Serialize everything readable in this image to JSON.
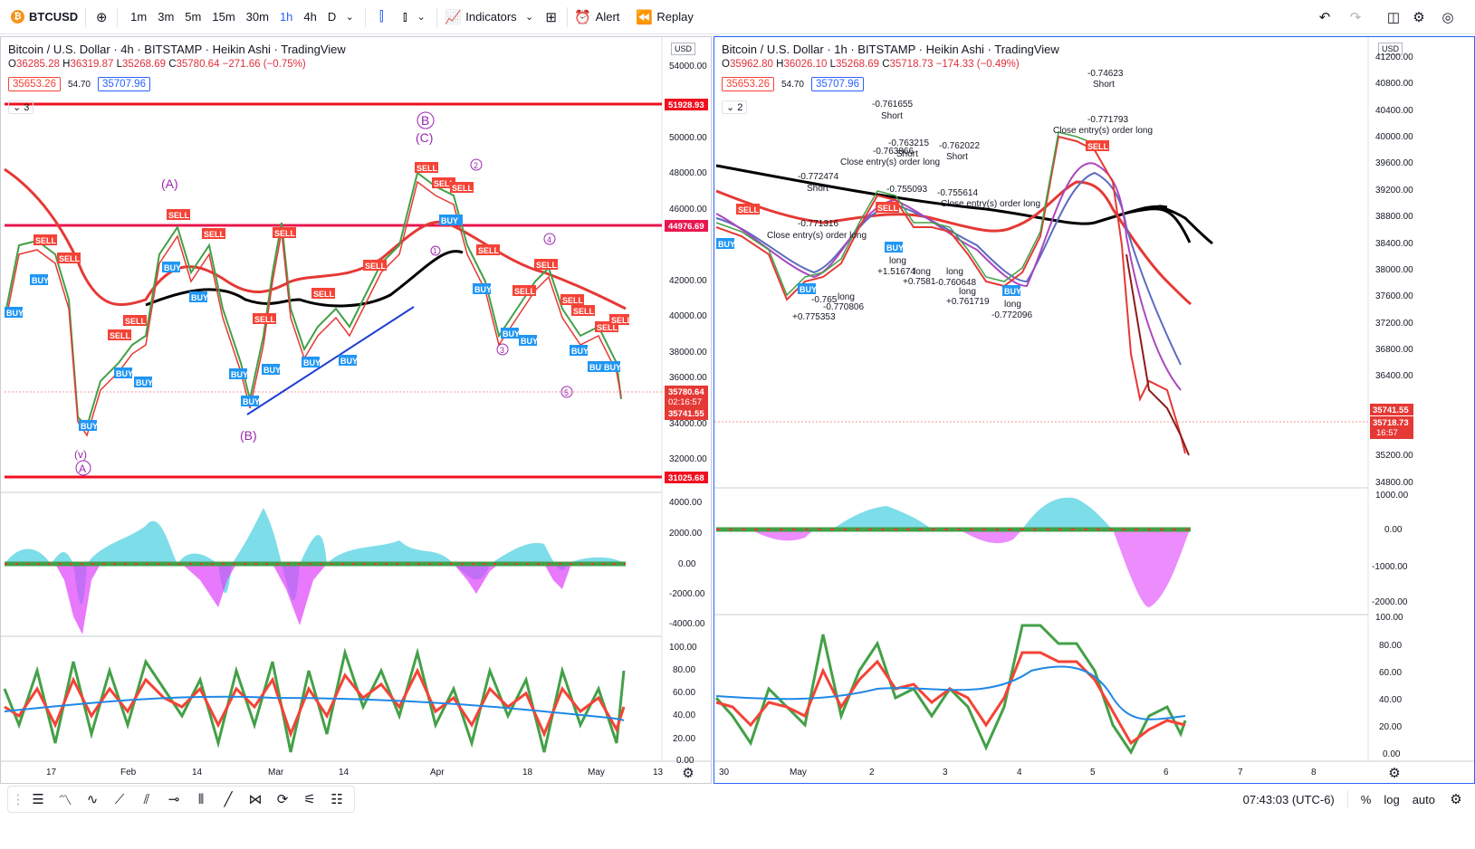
{
  "toolbar": {
    "symbol": "BTCUSD",
    "symbol_icon": "bitcoin-icon",
    "timeframes": [
      "1m",
      "3m",
      "5m",
      "15m",
      "30m",
      "1h",
      "4h",
      "D"
    ],
    "active_timeframe": "1h",
    "indicators_label": "Indicators",
    "alert_label": "Alert",
    "replay_label": "Replay"
  },
  "left_chart": {
    "title": "Bitcoin / U.S. Dollar · 4h · BITSTAMP · Heikin Ashi · TradingView",
    "ohlc": {
      "o": "36285.28",
      "h": "36319.87",
      "l": "35268.69",
      "c": "35780.64",
      "chg": "−271.66 (−0.75%)"
    },
    "bid": "35653.26",
    "spread": "54.70",
    "ask": "35707.96",
    "indicator_count": "3",
    "currency": "USD",
    "price_scale": [
      "54000.00",
      "50000.00",
      "48000.00",
      "46000.00",
      "42000.00",
      "40000.00",
      "38000.00",
      "36000.00",
      "34000.00",
      "32000.00"
    ],
    "level_tags": {
      "top": "51928.93",
      "mid": "44976.69",
      "bottom": "31025.68"
    },
    "last_tags": {
      "price": "35780.64",
      "countdown": "02:16:57",
      "sma": "35741.55"
    },
    "osc_scale": [
      "4000.00",
      "2000.00",
      "0.00",
      "-2000.00",
      "-4000.00"
    ],
    "rsi_scale": [
      "100.00",
      "80.00",
      "60.00",
      "40.00",
      "20.00",
      "0.00"
    ],
    "x_labels": [
      "17",
      "Feb",
      "14",
      "Mar",
      "14",
      "Apr",
      "18",
      "May",
      "13"
    ],
    "wave_labels": [
      "(A)",
      "(B)",
      "(C)",
      "B",
      "(v)",
      "A",
      "1",
      "2",
      "3",
      "4",
      "5"
    ],
    "signal_labels": [
      "BUY",
      "SELL"
    ]
  },
  "right_chart": {
    "title": "Bitcoin / U.S. Dollar · 1h · BITSTAMP · Heikin Ashi · TradingView",
    "ohlc": {
      "o": "35962.80",
      "h": "36026.10",
      "l": "35268.69",
      "c": "35718.73",
      "chg": "−174.33 (−0.49%)"
    },
    "bid": "35653.26",
    "spread": "54.70",
    "ask": "35707.96",
    "indicator_count": "2",
    "currency": "USD",
    "price_scale": [
      "41200.00",
      "40800.00",
      "40400.00",
      "40000.00",
      "39600.00",
      "39200.00",
      "38800.00",
      "38400.00",
      "38000.00",
      "37600.00",
      "37200.00",
      "36800.00",
      "36400.00",
      "35200.00",
      "34800.00"
    ],
    "last_tags": {
      "sma": "35741.55",
      "price": "35718.73",
      "countdown": "16:57"
    },
    "osc_scale": [
      "1000.00",
      "0.00",
      "-1000.00",
      "-2000.00"
    ],
    "rsi_scale": [
      "100.00",
      "80.00",
      "60.00",
      "40.00",
      "20.00",
      "0.00"
    ],
    "x_labels": [
      "30",
      "May",
      "2",
      "3",
      "4",
      "5",
      "6",
      "7",
      "8"
    ],
    "annotations": [
      "-0.74623",
      "Short",
      "-0.771793",
      "Close entry(s) order long",
      "-0.761655",
      "Short",
      "-0.763215",
      "-0.763866",
      "Short",
      "Close entry(s) order long",
      "-0.762022",
      "Short",
      "-0.772474",
      "Short",
      "-0.755093",
      "-0.755614",
      "Close entry(s) order long",
      "-0.771316",
      "Close entry(s) order long",
      "long",
      "+1.51674",
      "long",
      "+0.7581",
      "long",
      "-0.760648",
      "long",
      "+0.761719",
      "long",
      "-0.772096",
      "-0.765",
      "long",
      "-0.770806",
      "+0.775353"
    ]
  },
  "bottom": {
    "time": "07:43:03 (UTC-6)",
    "percent": "%",
    "log": "log",
    "auto": "auto"
  }
}
